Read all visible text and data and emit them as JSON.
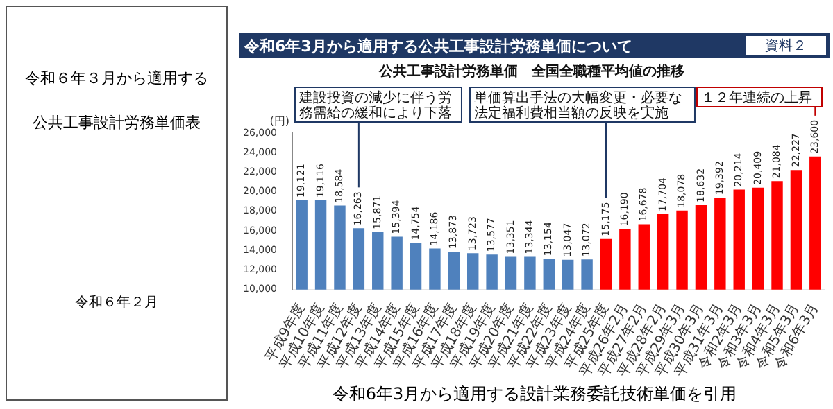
{
  "chart_data": {
    "type": "bar",
    "title": "公共工事設計労務単価　全国全職種平均値の推移",
    "subtitle": "令和6年3月から適用する公共工事設計労務単価について",
    "ylabel": "(円)",
    "categories": [
      "平成9年度",
      "平成10年度",
      "平成11年度",
      "平成12年度",
      "平成13年度",
      "平成14年度",
      "平成15年度",
      "平成16年度",
      "平成17年度",
      "平成18年度",
      "平成19年度",
      "平成20年度",
      "平成21年度",
      "平成22年度",
      "平成23年度",
      "平成24年度",
      "平成25年度",
      "平成26年2月",
      "平成27年2月",
      "平成28年2月",
      "平成29年3月",
      "平成30年3月",
      "平成31年3月",
      "令和2年3月",
      "令和3年3月",
      "令和4年3月",
      "令和5年3月",
      "令和6年3月"
    ],
    "values": [
      19121,
      19116,
      18584,
      16263,
      15871,
      15394,
      14754,
      14186,
      13873,
      13723,
      13577,
      13351,
      13344,
      13154,
      13047,
      13072,
      15175,
      16190,
      16678,
      17704,
      18078,
      18632,
      19392,
      20214,
      20409,
      21084,
      22227,
      23600
    ],
    "value_labels": [
      "19,121",
      "19,116",
      "18,584",
      "16,263",
      "15,871",
      "15,394",
      "14,754",
      "14,186",
      "13,873",
      "13,723",
      "13,577",
      "13,351",
      "13,344",
      "13,154",
      "13,047",
      "13,072",
      "15,175",
      "16,190",
      "16,678",
      "17,704",
      "18,078",
      "18,632",
      "19,392",
      "20,214",
      "20,409",
      "21,084",
      "22,227",
      "23,600"
    ],
    "colors": [
      "#4f81bd",
      "#4f81bd",
      "#4f81bd",
      "#4f81bd",
      "#4f81bd",
      "#4f81bd",
      "#4f81bd",
      "#4f81bd",
      "#4f81bd",
      "#4f81bd",
      "#4f81bd",
      "#4f81bd",
      "#4f81bd",
      "#4f81bd",
      "#4f81bd",
      "#4f81bd",
      "#ff0000",
      "#ff0000",
      "#ff0000",
      "#ff0000",
      "#ff0000",
      "#ff0000",
      "#ff0000",
      "#ff0000",
      "#ff0000",
      "#ff0000",
      "#ff0000",
      "#ff0000"
    ],
    "ylim": [
      10000,
      26000
    ],
    "yticks": [
      {
        "value": 10000,
        "label": "10,000"
      },
      {
        "value": 12000,
        "label": "12,000"
      },
      {
        "value": 14000,
        "label": "14,000"
      },
      {
        "value": 16000,
        "label": "16,000"
      },
      {
        "value": 18000,
        "label": "18,000"
      },
      {
        "value": 20000,
        "label": "20,000"
      },
      {
        "value": 22000,
        "label": "22,000"
      },
      {
        "value": 24000,
        "label": "24,000"
      },
      {
        "value": 26000,
        "label": "26,000"
      }
    ],
    "grid": false,
    "annotations": [
      "令和６年３月から適用する",
      "公共工事設計労務単価表",
      "令和６年２月",
      "資料２",
      "令和6年3月から適用する設計業務委託技術単価を引用",
      "建設投資の減少に伴う労務需給の緩和により下落",
      "単価算出手法の大幅変更・必要な法定福利費相当額の反映を実施",
      "１２年連続の上昇"
    ]
  }
}
